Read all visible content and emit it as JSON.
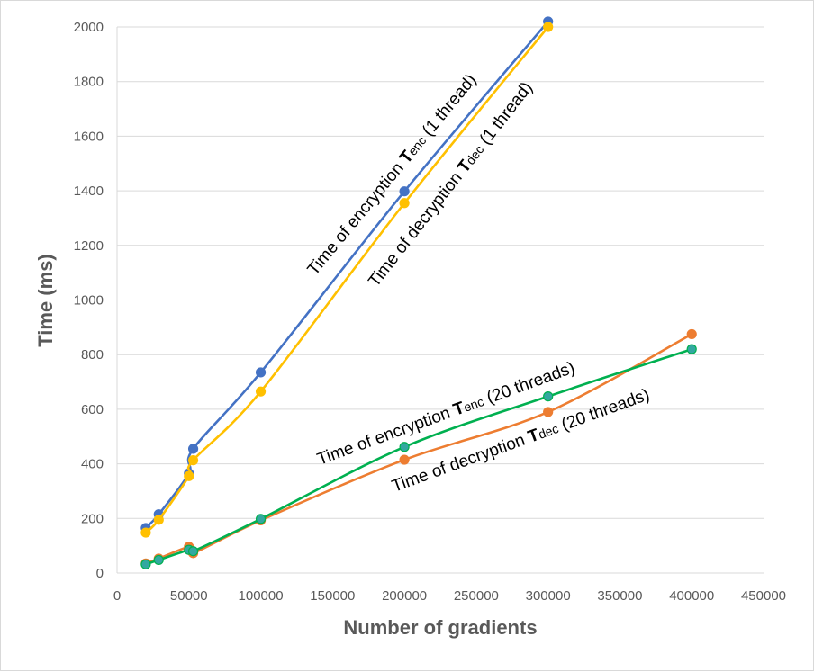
{
  "chart_data": {
    "type": "line",
    "title": "",
    "xlabel": "Number of gradients",
    "ylabel": "Time (ms)",
    "xlim": [
      0,
      450000
    ],
    "ylim": [
      0,
      2000
    ],
    "x_ticks": [
      "0",
      "50000",
      "100000",
      "150000",
      "200000",
      "250000",
      "300000",
      "350000",
      "400000",
      "450000"
    ],
    "y_ticks": [
      "0",
      "200",
      "400",
      "600",
      "800",
      "1000",
      "1200",
      "1400",
      "1600",
      "1800",
      "2000"
    ],
    "grid": "horizontal",
    "legend": "none",
    "series": [
      {
        "name": "Time of encryption Tenc (1 thread)",
        "color": "#4472C4",
        "marker_color": "#4472C4",
        "x": [
          20000,
          29000,
          50000,
          53000,
          100000,
          200000,
          300000
        ],
        "y": [
          165,
          215,
          365,
          455,
          735,
          1398,
          2020
        ]
      },
      {
        "name": "Time of decryption Tdec (1 thread)",
        "color": "#FFC000",
        "marker_color": "#FFC000",
        "x": [
          20000,
          29000,
          50000,
          53000,
          100000,
          200000,
          300000
        ],
        "y": [
          148,
          195,
          355,
          413,
          665,
          1355,
          2000
        ]
      },
      {
        "name": "Time of decryption Tdec (20 threads)",
        "color": "#ED7D31",
        "marker_color": "#ED7D31",
        "x": [
          20000,
          29000,
          50000,
          53000,
          100000,
          200000,
          300000,
          400000
        ],
        "y": [
          35,
          53,
          96,
          73,
          193,
          415,
          590,
          875
        ]
      },
      {
        "name": "Time of encryption Tenc (20 threads)",
        "color": "#00B050",
        "marker_color": "#33A8A0",
        "x": [
          20000,
          29000,
          50000,
          53000,
          100000,
          200000,
          300000,
          400000
        ],
        "y": [
          32,
          48,
          85,
          80,
          198,
          462,
          647,
          820
        ]
      }
    ],
    "annotations": [
      {
        "pre": "Time of encryption ",
        "sym": "T",
        "sub": "enc",
        "post": " (1 thread)"
      },
      {
        "pre": "Time of decryption ",
        "sym": "T",
        "sub": "dec",
        "post": " (1 thread)"
      },
      {
        "pre": "Time of encryption ",
        "sym": "T",
        "sub": "enc",
        "post": " (20 threads)"
      },
      {
        "pre": "Time of decryption  ",
        "sym": "T",
        "sub": "dec",
        "post": " (20 threads)"
      }
    ]
  }
}
